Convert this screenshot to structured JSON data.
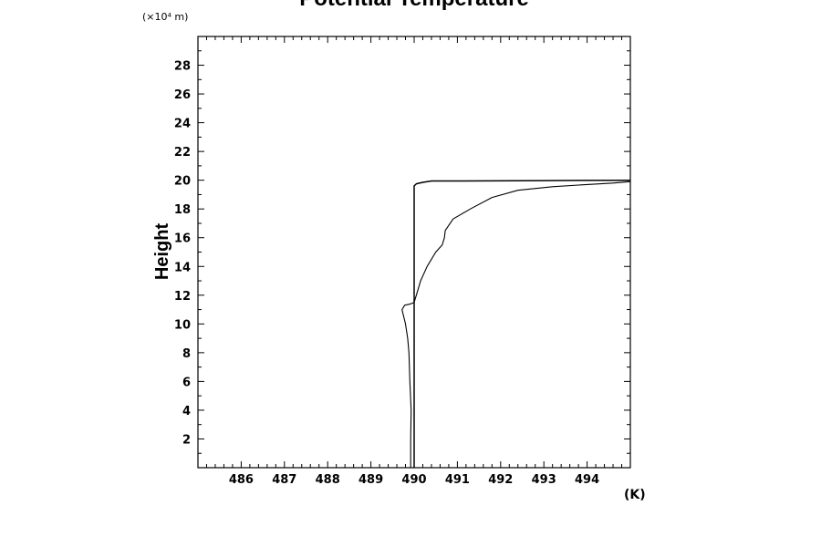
{
  "chart_data": {
    "type": "line",
    "title": "Potential Temperature",
    "xlabel": "",
    "xunit": "(K)",
    "ylabel": "Height",
    "yscale_note": "(×10⁴ m)",
    "xlim": [
      485,
      495
    ],
    "ylim": [
      0,
      30
    ],
    "xticks": [
      486,
      487,
      488,
      489,
      490,
      491,
      492,
      493,
      494
    ],
    "yticks": [
      2,
      4,
      6,
      8,
      10,
      12,
      14,
      16,
      18,
      20,
      22,
      24,
      26,
      28
    ],
    "grid": false,
    "line_color": "#000000",
    "series": [
      {
        "x": [
          490.0,
          490.0,
          490.0,
          490.0,
          490.0,
          490.0,
          490.0,
          490.0,
          490.0,
          490.0,
          490.0,
          490.0,
          490.05,
          490.2,
          490.4,
          491.0,
          493.0,
          495.0
        ],
        "y": [
          0,
          2,
          4,
          6,
          8,
          10,
          12,
          14,
          16,
          18,
          19.0,
          19.6,
          19.75,
          19.85,
          19.95,
          19.95,
          19.97,
          20.0
        ]
      },
      {
        "x": [
          489.92,
          489.92,
          489.93,
          489.9,
          489.88,
          489.85,
          489.8,
          489.72,
          489.78,
          489.92,
          490.0,
          490.05,
          490.15,
          490.3,
          490.5,
          490.65,
          490.7,
          490.72,
          490.9,
          491.3,
          491.8,
          492.4,
          493.2,
          494.0,
          494.6,
          495.0
        ],
        "y": [
          0,
          2,
          4,
          6,
          8,
          9,
          10,
          11,
          11.3,
          11.4,
          11.5,
          12,
          13,
          14,
          15,
          15.5,
          16,
          16.5,
          17.3,
          18,
          18.8,
          19.3,
          19.55,
          19.7,
          19.8,
          19.9
        ]
      }
    ]
  }
}
